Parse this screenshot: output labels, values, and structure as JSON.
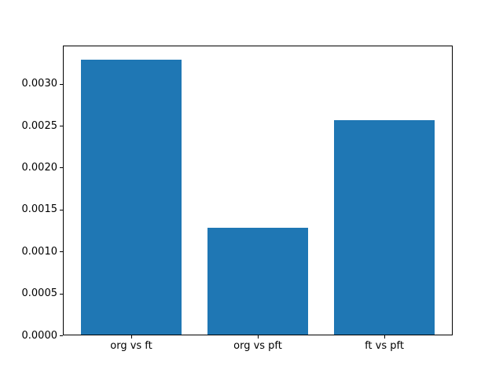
{
  "figure": {
    "background": "#ffffff",
    "spine_color": "#000000"
  },
  "chart_data": {
    "type": "bar",
    "title": "",
    "xlabel": "",
    "ylabel": "",
    "categories": [
      "org vs ft",
      "org vs pft",
      "ft vs pft"
    ],
    "values": [
      0.00329,
      0.00128,
      0.00257
    ],
    "bar_color": "#1f77b4",
    "ylim": [
      0,
      0.003455
    ],
    "yticks": [
      {
        "label": "0.0000",
        "value": 0.0
      },
      {
        "label": "0.0005",
        "value": 0.0005
      },
      {
        "label": "0.0010",
        "value": 0.001
      },
      {
        "label": "0.0015",
        "value": 0.0015
      },
      {
        "label": "0.0020",
        "value": 0.002
      },
      {
        "label": "0.0025",
        "value": 0.0025
      },
      {
        "label": "0.0030",
        "value": 0.003
      }
    ],
    "grid": false,
    "legend": null
  }
}
